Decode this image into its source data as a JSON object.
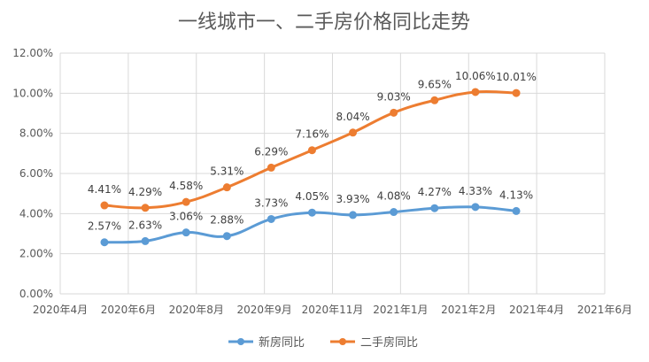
{
  "chart_data": {
    "type": "line",
    "title": "一线城市一、二手房价格同比走势",
    "xlabel": "",
    "ylabel": "",
    "ylim": [
      0,
      12
    ],
    "yticks": [
      0,
      2,
      4,
      6,
      8,
      10,
      12
    ],
    "ytick_labels": [
      "0.00%",
      "2.00%",
      "4.00%",
      "6.00%",
      "8.00%",
      "10.00%",
      "12.00%"
    ],
    "x_tick_labels": [
      "2020年4月",
      "2020年6月",
      "2020年8月",
      "2020年9月",
      "2020年11月",
      "2021年1月",
      "2021年2月",
      "2021年4月",
      "2021年6月"
    ],
    "x_points": [
      0.65,
      1.25,
      1.85,
      2.45,
      3.1,
      3.7,
      4.3,
      4.9,
      5.5,
      6.1,
      6.7
    ],
    "series": [
      {
        "name": "新房同比",
        "color": "#5B9BD5",
        "values": [
          2.57,
          2.63,
          3.06,
          2.88,
          3.73,
          4.05,
          3.93,
          4.08,
          4.27,
          4.33,
          4.13
        ],
        "labels": [
          "2.57%",
          "2.63%",
          "3.06%",
          "2.88%",
          "3.73%",
          "4.05%",
          "3.93%",
          "4.08%",
          "4.27%",
          "4.33%",
          "4.13%"
        ]
      },
      {
        "name": "二手房同比",
        "color": "#ED7D31",
        "values": [
          4.41,
          4.29,
          4.58,
          5.31,
          6.29,
          7.16,
          8.04,
          9.03,
          9.65,
          10.06,
          10.01
        ],
        "labels": [
          "4.41%",
          "4.29%",
          "4.58%",
          "5.31%",
          "6.29%",
          "7.16%",
          "8.04%",
          "9.03%",
          "9.65%",
          "10.06%",
          "10.01%"
        ]
      }
    ],
    "grid": true,
    "legend": "bottom"
  }
}
